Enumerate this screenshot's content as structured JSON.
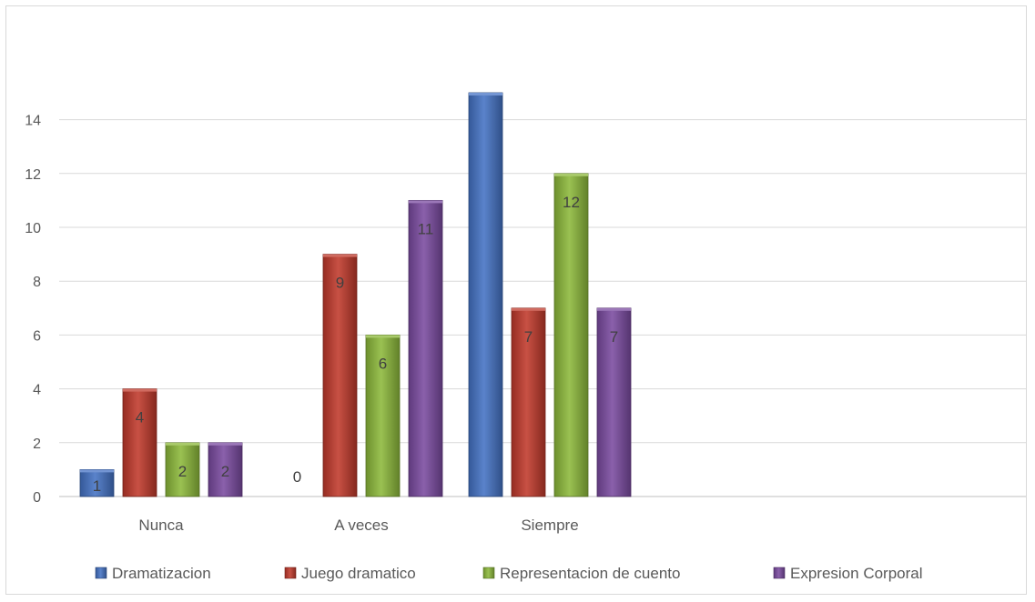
{
  "chart_data": {
    "type": "bar",
    "title": "",
    "xlabel": "",
    "ylabel": "",
    "categories": [
      "Nunca",
      "A veces",
      "Siempre"
    ],
    "ylim": [
      0,
      15
    ],
    "yticks": [
      0,
      2,
      4,
      6,
      8,
      10,
      12,
      14
    ],
    "grid": true,
    "legend_position": "bottom",
    "series": [
      {
        "name": "Dramatizacion",
        "color": "#4472c4",
        "values": [
          1,
          0,
          15
        ],
        "labels": [
          "1",
          "0",
          ""
        ]
      },
      {
        "name": "Juego dramatico",
        "color": "#c0392b",
        "values": [
          4,
          9,
          7
        ],
        "labels": [
          "4",
          "9",
          "7"
        ]
      },
      {
        "name": "Representacion de cuento",
        "color": "#8cb83a",
        "values": [
          2,
          6,
          12
        ],
        "labels": [
          "2",
          "6",
          "12"
        ]
      },
      {
        "name": "Expresion Corporal",
        "color": "#7a4aa0",
        "values": [
          2,
          11,
          7
        ],
        "labels": [
          "2",
          "11",
          "7"
        ]
      }
    ]
  }
}
